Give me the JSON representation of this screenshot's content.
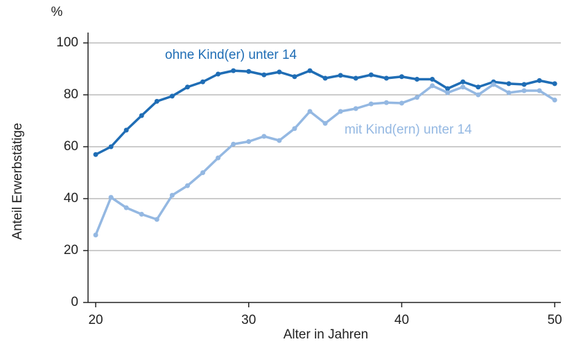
{
  "chart_data": {
    "type": "line",
    "ylabel": "Anteil Erwerbstätige",
    "y_unit": "%",
    "xlabel": "Alter in Jahren",
    "x": [
      20,
      21,
      22,
      23,
      24,
      25,
      26,
      27,
      28,
      29,
      30,
      31,
      32,
      33,
      34,
      35,
      36,
      37,
      38,
      39,
      40,
      41,
      42,
      43,
      44,
      45,
      46,
      47,
      48,
      49,
      50
    ],
    "series": [
      {
        "name": "ohne Kind(er) unter 14",
        "color": "#1f6db5",
        "values": [
          57,
          60,
          66.4,
          72,
          77.5,
          79.5,
          83,
          85,
          88,
          89.3,
          89,
          87.7,
          88.8,
          87,
          89.3,
          86.4,
          87.5,
          86.4,
          87.7,
          86.4,
          87,
          86,
          86,
          82.4,
          85,
          83,
          85,
          84.3,
          84,
          85.5,
          84.3
        ]
      },
      {
        "name": "mit Kind(ern) unter 14",
        "color": "#94b8e2",
        "values": [
          26,
          40.5,
          36.5,
          34,
          32,
          41.3,
          45,
          50,
          55.7,
          61,
          62,
          64,
          62.4,
          67,
          73.6,
          69,
          73.6,
          74.7,
          76.5,
          77,
          76.8,
          79,
          83.5,
          80.8,
          83,
          80,
          84,
          80.8,
          81.6,
          81.6,
          78
        ]
      }
    ],
    "xlim": [
      19.5,
      50.4
    ],
    "xticks": [
      20,
      30,
      40,
      50
    ],
    "ylim": [
      0,
      104
    ],
    "yticks": [
      0,
      20,
      40,
      60,
      80,
      100
    ],
    "grid": true
  }
}
